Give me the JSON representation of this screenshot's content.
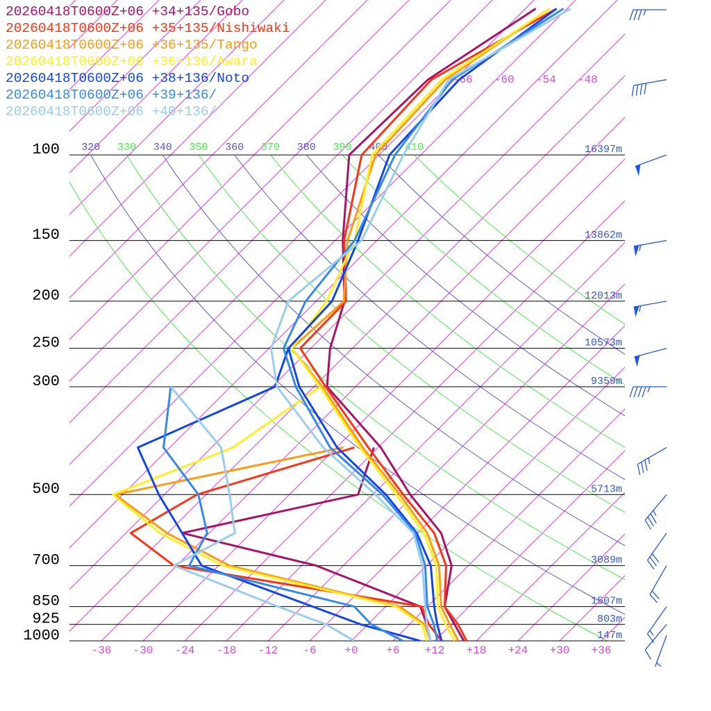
{
  "chart_data": {
    "type": "skewt",
    "levels": [
      1000,
      925,
      850,
      700,
      600,
      500,
      400,
      300,
      250,
      200,
      150,
      100,
      70,
      50
    ],
    "series": [
      {
        "name": "20260418T0600Z+06 +34+135/Gobo",
        "color": "#aa1166",
        "temperature": [
          16.2,
          12.5,
          8.5,
          3.6,
          -2.6,
          -12.6,
          -23.6,
          -40.1,
          -45.2,
          -49.9,
          -58.9,
          -70.3,
          -69.8,
          -64.5
        ],
        "dewpoint": [
          11.4,
          8.5,
          5.0,
          -15.9,
          -39.9,
          -20.1,
          -24.6,
          null,
          null,
          null,
          null,
          null,
          null,
          null
        ]
      },
      {
        "name": "20260418T0600Z+06 +35+135/Nishiwaki",
        "color": "#ff3311",
        "temperature": [
          16.6,
          13,
          8.5,
          2.8,
          -3.6,
          -13.6,
          -25.4,
          -40.3,
          -49.5,
          -49.7,
          -58.7,
          -68.5,
          -69.3,
          -61.5
        ],
        "dewpoint": [
          13,
          8.8,
          5.2,
          -36.4,
          -47.3,
          -43.3,
          -27.4,
          null,
          null,
          null,
          null,
          null,
          null,
          null
        ]
      },
      {
        "name": "20260418T0600Z+06 +36+135/Tango",
        "color": "#ff9911",
        "temperature": [
          15.4,
          11.8,
          8,
          1.8,
          -4.6,
          -14.1,
          -26.2,
          -40.8,
          -50.7,
          -50,
          -58.2,
          -66.5,
          -67.3,
          -62.5
        ],
        "dewpoint": [
          11.4,
          8.2,
          2,
          -28.4,
          -42.1,
          -55.1,
          -29,
          null,
          null,
          null,
          null,
          null,
          null,
          null
        ]
      },
      {
        "name": "20260418T0600Z+06 +36+136/Awara",
        "color": "#ffee22",
        "temperature": [
          14.9,
          11.2,
          7.5,
          1.4,
          -5.1,
          -14.6,
          -26.6,
          -41.1,
          -50.7,
          -52.5,
          -57.2,
          -67,
          -67.8,
          -62.5
        ],
        "dewpoint": [
          10.9,
          7.8,
          1.5,
          -29.4,
          -43.1,
          -55.4,
          -44.9,
          -41.1,
          null,
          null,
          null,
          null,
          null,
          null
        ]
      },
      {
        "name": "20260418T0600Z+06 +38+136/Noto",
        "color": "#1144ee",
        "temperature": [
          13,
          10,
          7,
          0.6,
          -6.1,
          -16.1,
          -29.9,
          -44.1,
          -51.2,
          -51.7,
          -56.7,
          -64.5,
          -65.3,
          -61.5
        ],
        "dewpoint": [
          9.9,
          -1,
          -10.5,
          -32.4,
          -39.9,
          -48.8,
          -58.6,
          -47.6,
          -51.2,
          null,
          null,
          null,
          null,
          null
        ]
      },
      {
        "name": "20260418T0600Z+06 +39+136/",
        "color": "#3388ee",
        "temperature": [
          12.4,
          9.5,
          6,
          -0.2,
          -6.3,
          -16.6,
          -30.9,
          -44.6,
          -51.9,
          -55.5,
          -57.2,
          -63.7,
          -66.3,
          -60.5
        ],
        "dewpoint": [
          7.4,
          0.5,
          -4.5,
          -34.2,
          -36.3,
          -43.1,
          -54.9,
          -62.6,
          null,
          null,
          null,
          null,
          null,
          null
        ]
      },
      {
        "name": "20260418T0600Z+06 +40+136/",
        "color": "#99ccee",
        "temperature": [
          11.4,
          8.5,
          5.7,
          -0.6,
          -6.6,
          -17.6,
          -31.9,
          -47.3,
          -53.7,
          -58,
          -56.2,
          -62.5,
          -66.8,
          -59.5
        ],
        "dewpoint": [
          0.4,
          -6,
          -15.5,
          -36.4,
          -32.3,
          -38.6,
          -46.6,
          -62.6,
          null,
          null,
          null,
          null,
          null,
          null
        ]
      }
    ],
    "ylim": [
      1000,
      48
    ],
    "log_y": true,
    "yticks": [
      100,
      150,
      200,
      250,
      300,
      500,
      700,
      850,
      925,
      1000
    ],
    "heights": [
      "16397m",
      "13862m",
      "12013m",
      "10573m",
      "9359m",
      "5713m",
      "3089m",
      "1507m",
      "803m",
      "147m"
    ],
    "xlim": [
      -40.6,
      39.4
    ],
    "xticks": [
      -36,
      -30,
      -24,
      -18,
      -12,
      -6,
      {
        "value": 0,
        "label": "+0"
      },
      {
        "value": 6,
        "label": "+6"
      },
      {
        "value": 12,
        "label": "+12"
      },
      {
        "value": 18,
        "label": "+18"
      },
      {
        "value": 24,
        "label": "+24"
      },
      {
        "value": 30,
        "label": "+30"
      },
      {
        "value": 36,
        "label": "+36"
      }
    ],
    "isotherms": [
      -132,
      -126,
      -120,
      -114,
      -108,
      -102,
      -96,
      -90,
      -84,
      -78,
      -72,
      -66,
      -60,
      -54,
      -48,
      -42,
      -36,
      -30,
      -24,
      -18,
      -12,
      -6,
      0,
      6,
      12,
      18,
      24,
      30,
      36
    ],
    "isotherm_labels": [
      -66,
      -60,
      -54,
      -48
    ],
    "isotherm_color": "#dd44dd",
    "theta_lines": [
      310,
      320,
      330,
      340,
      350,
      360,
      370,
      380,
      390,
      400,
      410
    ],
    "theta_colors": [
      "#44ee44",
      "#5555dd"
    ],
    "wind": [
      {
        "pressure": 50,
        "direction": 270,
        "speed": 35
      },
      {
        "pressure": 70,
        "direction": 260,
        "speed": 40
      },
      {
        "pressure": 100,
        "direction": 250,
        "speed": 50
      },
      {
        "pressure": 150,
        "direction": 260,
        "speed": 55
      },
      {
        "pressure": 200,
        "direction": 260,
        "speed": 55
      },
      {
        "pressure": 250,
        "direction": 255,
        "speed": 50
      },
      {
        "pressure": 300,
        "direction": 270,
        "speed": 45
      },
      {
        "pressure": 400,
        "direction": 240,
        "speed": 35
      },
      {
        "pressure": 500,
        "direction": 220,
        "speed": 35
      },
      {
        "pressure": 600,
        "direction": 215,
        "speed": 30
      },
      {
        "pressure": 700,
        "direction": 210,
        "speed": 20
      },
      {
        "pressure": 850,
        "direction": 215,
        "speed": 15
      },
      {
        "pressure": 925,
        "direction": 220,
        "speed": 10
      },
      {
        "pressure": 1000,
        "direction": 200,
        "speed": 5
      }
    ],
    "wind_color": "#2255ee"
  }
}
